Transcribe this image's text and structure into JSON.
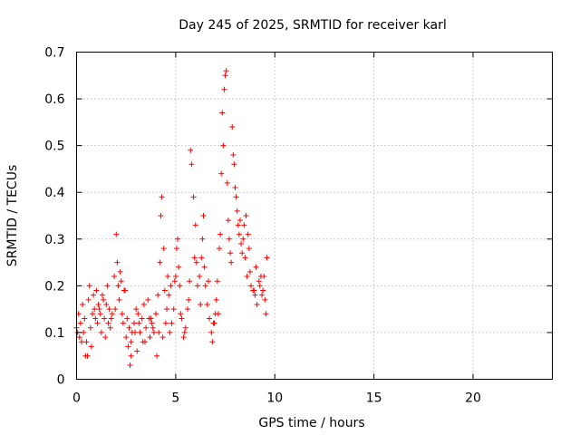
{
  "chart_data": {
    "type": "scatter",
    "title": "Day 245 of 2025, SRMTID for receiver karl",
    "xlabel": "GPS time / hours",
    "ylabel": "SRMTID / TECUs",
    "xlim": [
      0,
      24
    ],
    "ylim": [
      0,
      0.7
    ],
    "xticks": [
      0,
      5,
      10,
      15,
      20
    ],
    "xtick_labels": [
      "0",
      "5",
      "10",
      "15",
      "20"
    ],
    "yticks": [
      0,
      0.1,
      0.2,
      0.3,
      0.4,
      0.5,
      0.6,
      0.7
    ],
    "ytick_labels": [
      "0",
      "0.1",
      "0.2",
      "0.3",
      "0.4",
      "0.5",
      "0.6",
      "0.7"
    ],
    "grid": true,
    "marker": "+",
    "color": "#ff0000",
    "series": [
      {
        "name": "SRMTID",
        "x": [
          0.0,
          0.1,
          0.15,
          0.2,
          0.3,
          0.35,
          0.4,
          0.5,
          0.55,
          0.6,
          0.65,
          0.7,
          0.75,
          0.8,
          0.85,
          0.9,
          1.0,
          1.05,
          1.1,
          1.2,
          1.25,
          1.3,
          1.4,
          1.45,
          1.5,
          1.6,
          1.65,
          1.7,
          1.8,
          1.9,
          2.0,
          2.05,
          2.1,
          2.15,
          2.2,
          2.25,
          2.3,
          2.35,
          2.4,
          2.5,
          2.55,
          2.6,
          2.65,
          2.7,
          2.75,
          2.8,
          2.9,
          3.0,
          3.05,
          3.1,
          3.2,
          3.3,
          3.35,
          3.4,
          3.5,
          3.6,
          3.7,
          3.75,
          3.8,
          3.9,
          4.0,
          4.05,
          4.1,
          4.2,
          4.25,
          4.3,
          4.4,
          4.45,
          4.5,
          4.55,
          4.6,
          4.65,
          4.7,
          4.8,
          4.9,
          5.0,
          5.05,
          5.1,
          5.15,
          5.2,
          5.3,
          5.4,
          5.5,
          5.6,
          5.7,
          5.75,
          5.8,
          5.9,
          6.0,
          6.05,
          6.1,
          6.2,
          6.3,
          6.35,
          6.4,
          6.5,
          6.6,
          6.7,
          6.8,
          6.85,
          6.9,
          7.0,
          7.05,
          7.1,
          7.2,
          7.3,
          7.35,
          7.4,
          7.45,
          7.5,
          7.55,
          7.6,
          7.65,
          7.7,
          7.75,
          7.8,
          7.85,
          7.9,
          7.95,
          8.0,
          8.05,
          8.1,
          8.15,
          8.2,
          8.3,
          8.4,
          8.45,
          8.5,
          8.6,
          8.7,
          8.8,
          8.9,
          9.0,
          9.1,
          9.2,
          9.3,
          9.4,
          9.5,
          9.55,
          9.6,
          0.05,
          0.25,
          0.45,
          0.95,
          1.15,
          1.35,
          1.55,
          1.75,
          1.95,
          2.45,
          2.75,
          2.95,
          3.15,
          3.45,
          3.65,
          3.85,
          4.15,
          4.35,
          4.75,
          4.95,
          5.25,
          5.45,
          5.65,
          5.95,
          6.25,
          6.45,
          6.65,
          6.95,
          7.15,
          7.25,
          8.25,
          8.35,
          8.55,
          8.65,
          8.75,
          8.95,
          9.05,
          9.25,
          9.35,
          9.45
        ],
        "y": [
          0.11,
          0.14,
          0.09,
          0.12,
          0.16,
          0.1,
          0.13,
          0.08,
          0.05,
          0.17,
          0.2,
          0.11,
          0.07,
          0.14,
          0.18,
          0.15,
          0.19,
          0.12,
          0.16,
          0.14,
          0.1,
          0.18,
          0.13,
          0.09,
          0.16,
          0.12,
          0.15,
          0.11,
          0.14,
          0.22,
          0.31,
          0.25,
          0.2,
          0.17,
          0.23,
          0.21,
          0.14,
          0.12,
          0.19,
          0.09,
          0.13,
          0.07,
          0.11,
          0.03,
          0.08,
          0.1,
          0.12,
          0.15,
          0.06,
          0.14,
          0.1,
          0.13,
          0.08,
          0.16,
          0.11,
          0.17,
          0.09,
          0.13,
          0.12,
          0.1,
          0.14,
          0.05,
          0.18,
          0.25,
          0.35,
          0.39,
          0.28,
          0.19,
          0.12,
          0.15,
          0.22,
          0.18,
          0.1,
          0.12,
          0.15,
          0.22,
          0.28,
          0.3,
          0.24,
          0.2,
          0.13,
          0.09,
          0.11,
          0.15,
          0.21,
          0.49,
          0.46,
          0.39,
          0.33,
          0.25,
          0.2,
          0.22,
          0.26,
          0.3,
          0.35,
          0.2,
          0.16,
          0.13,
          0.1,
          0.08,
          0.12,
          0.14,
          0.17,
          0.21,
          0.28,
          0.44,
          0.57,
          0.5,
          0.62,
          0.65,
          0.66,
          0.42,
          0.34,
          0.3,
          0.27,
          0.25,
          0.54,
          0.48,
          0.46,
          0.41,
          0.39,
          0.36,
          0.33,
          0.31,
          0.29,
          0.3,
          0.33,
          0.26,
          0.22,
          0.28,
          0.2,
          0.19,
          0.18,
          0.16,
          0.21,
          0.22,
          0.19,
          0.17,
          0.14,
          0.26,
          0.1,
          0.08,
          0.05,
          0.13,
          0.15,
          0.17,
          0.2,
          0.13,
          0.15,
          0.19,
          0.05,
          0.1,
          0.12,
          0.08,
          0.13,
          0.11,
          0.1,
          0.09,
          0.2,
          0.21,
          0.14,
          0.1,
          0.17,
          0.26,
          0.16,
          0.24,
          0.21,
          0.12,
          0.14,
          0.31,
          0.34,
          0.27,
          0.35,
          0.31,
          0.23,
          0.19,
          0.24,
          0.2,
          0.18,
          0.22
        ]
      }
    ]
  }
}
